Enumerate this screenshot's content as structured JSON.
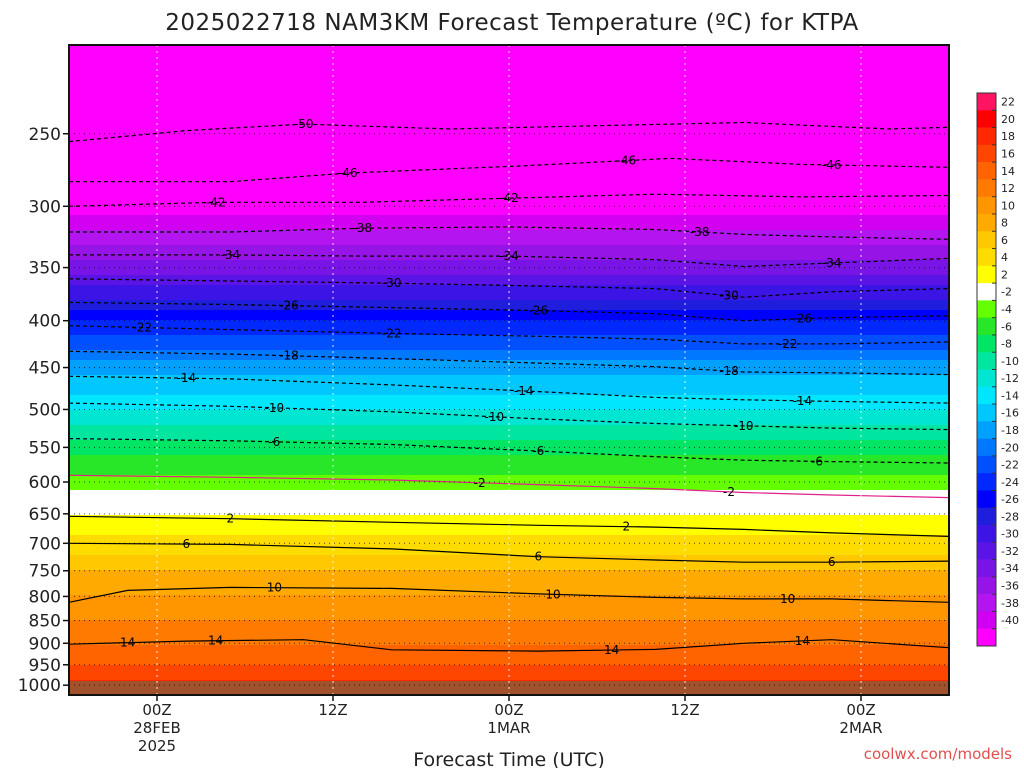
{
  "chart_data": {
    "type": "heatmap",
    "title": "2025022718 NAM3KM Forecast Temperature (ºC) for KTPA",
    "xlabel": "Forecast Time (UTC)",
    "ylabel": "",
    "credit": "coolwx.com/models",
    "y_ticks": [
      250,
      300,
      350,
      400,
      450,
      500,
      550,
      600,
      650,
      700,
      750,
      800,
      850,
      900,
      950,
      1000
    ],
    "ylim": [
      1025,
      200
    ],
    "x_ticks": [
      {
        "lines": [
          "00Z",
          "28FEB",
          "2025"
        ]
      },
      {
        "lines": [
          "12Z"
        ]
      },
      {
        "lines": [
          "00Z",
          "1MAR"
        ]
      },
      {
        "lines": [
          "12Z"
        ]
      },
      {
        "lines": [
          "00Z",
          "2MAR"
        ]
      }
    ],
    "xlim_hours": [
      -6,
      54
    ],
    "x_tick_hours": [
      0,
      12,
      24,
      36,
      48
    ],
    "y_scale": "log",
    "grid": true,
    "colorbar_labels": [
      22,
      20,
      18,
      16,
      14,
      12,
      10,
      8,
      6,
      4,
      2,
      -2,
      -4,
      -6,
      -8,
      -10,
      -12,
      -14,
      -16,
      -18,
      -20,
      -22,
      -24,
      -26,
      -28,
      -30,
      -32,
      -34,
      -36,
      -38,
      -40
    ],
    "colorbar_colors": [
      "#ff1463",
      "#ff0000",
      "#ff2800",
      "#ff4600",
      "#ff6400",
      "#ff7a00",
      "#ff9600",
      "#ffaa00",
      "#ffc800",
      "#ffdc00",
      "#ffff00",
      "#ffffff",
      "#64ff00",
      "#28e628",
      "#00e664",
      "#00e6a0",
      "#00e6d2",
      "#00e6ff",
      "#00c8ff",
      "#00a0ff",
      "#0078ff",
      "#0050ff",
      "#0028ff",
      "#0000ff",
      "#1e1edc",
      "#3c14e6",
      "#5a14e6",
      "#7814e6",
      "#9614e6",
      "#b414f0",
      "#d200f0",
      "#ff00ff"
    ],
    "temperature_profile": [
      {
        "p": 200,
        "t": -54
      },
      {
        "p": 250,
        "t": -48
      },
      {
        "p": 300,
        "t": -41
      },
      {
        "p": 350,
        "t": -33
      },
      {
        "p": 400,
        "t": -24
      },
      {
        "p": 450,
        "t": -17
      },
      {
        "p": 500,
        "t": -12
      },
      {
        "p": 550,
        "t": -7
      },
      {
        "p": 600,
        "t": -3
      },
      {
        "p": 650,
        "t": 2
      },
      {
        "p": 700,
        "t": 5
      },
      {
        "p": 750,
        "t": 8
      },
      {
        "p": 800,
        "t": 10
      },
      {
        "p": 850,
        "t": 12
      },
      {
        "p": 900,
        "t": 14
      },
      {
        "p": 950,
        "t": 16
      },
      {
        "p": 1000,
        "t": 19
      }
    ],
    "contours": [
      {
        "value": -50,
        "points": [
          [
            -6,
            255
          ],
          [
            2,
            248
          ],
          [
            10,
            244
          ],
          [
            20,
            247
          ],
          [
            30,
            245
          ],
          [
            40,
            243
          ],
          [
            50,
            247
          ],
          [
            54,
            246
          ]
        ],
        "labels": [
          {
            "text": "-50",
            "hour": 10
          }
        ]
      },
      {
        "value": -46,
        "points": [
          [
            -6,
            282
          ],
          [
            5,
            282
          ],
          [
            13,
            276
          ],
          [
            25,
            271
          ],
          [
            35,
            266
          ],
          [
            44,
            270
          ],
          [
            54,
            272
          ]
        ],
        "labels": [
          {
            "text": "-46",
            "hour": 13
          },
          {
            "text": "-46",
            "hour": 32
          },
          {
            "text": "-46",
            "hour": 46
          }
        ]
      },
      {
        "value": -42,
        "points": [
          [
            -6,
            300
          ],
          [
            4,
            297
          ],
          [
            14,
            297
          ],
          [
            24,
            294
          ],
          [
            34,
            291
          ],
          [
            44,
            293
          ],
          [
            54,
            292
          ]
        ],
        "labels": [
          {
            "text": "-42",
            "hour": 4
          },
          {
            "text": "-42",
            "hour": 24
          }
        ]
      },
      {
        "value": -38,
        "points": [
          [
            -6,
            320
          ],
          [
            5,
            320
          ],
          [
            14,
            317
          ],
          [
            24,
            316
          ],
          [
            34,
            318
          ],
          [
            40,
            322
          ],
          [
            46,
            324
          ],
          [
            54,
            326
          ]
        ],
        "labels": [
          {
            "text": "-38",
            "hour": 14
          },
          {
            "text": "-38",
            "hour": 37
          }
        ]
      },
      {
        "value": -34,
        "points": [
          [
            -6,
            339
          ],
          [
            5,
            339
          ],
          [
            14,
            340
          ],
          [
            24,
            340
          ],
          [
            34,
            343
          ],
          [
            40,
            349
          ],
          [
            46,
            346
          ],
          [
            54,
            342
          ]
        ],
        "labels": [
          {
            "text": "-34",
            "hour": 5
          },
          {
            "text": "-34",
            "hour": 24
          },
          {
            "text": "-34",
            "hour": 46
          }
        ]
      },
      {
        "value": -30,
        "points": [
          [
            -6,
            360
          ],
          [
            5,
            362
          ],
          [
            16,
            364
          ],
          [
            24,
            366
          ],
          [
            34,
            369
          ],
          [
            40,
            377
          ],
          [
            46,
            372
          ],
          [
            54,
            369
          ]
        ],
        "labels": [
          {
            "text": "-30",
            "hour": 16
          },
          {
            "text": "-30",
            "hour": 39
          }
        ]
      },
      {
        "value": -26,
        "points": [
          [
            -6,
            382
          ],
          [
            5,
            384
          ],
          [
            16,
            387
          ],
          [
            26,
            390
          ],
          [
            34,
            393
          ],
          [
            40,
            400
          ],
          [
            46,
            397
          ],
          [
            54,
            395
          ]
        ],
        "labels": [
          {
            "text": "-26",
            "hour": 9
          },
          {
            "text": "-26",
            "hour": 26
          },
          {
            "text": "-26",
            "hour": 44
          }
        ]
      },
      {
        "value": -22,
        "points": [
          [
            -6,
            405
          ],
          [
            5,
            409
          ],
          [
            16,
            413
          ],
          [
            26,
            416
          ],
          [
            34,
            419
          ],
          [
            40,
            424
          ],
          [
            46,
            424
          ],
          [
            54,
            422
          ]
        ],
        "labels": [
          {
            "text": "-22",
            "hour": -1
          },
          {
            "text": "-22",
            "hour": 16
          },
          {
            "text": "-22",
            "hour": 43
          }
        ]
      },
      {
        "value": -18,
        "points": [
          [
            -6,
            432
          ],
          [
            5,
            435
          ],
          [
            16,
            440
          ],
          [
            26,
            445
          ],
          [
            34,
            449
          ],
          [
            40,
            455
          ],
          [
            46,
            456
          ],
          [
            54,
            458
          ]
        ],
        "labels": [
          {
            "text": "-18",
            "hour": 9
          },
          {
            "text": "-18",
            "hour": 39
          }
        ]
      },
      {
        "value": -14,
        "points": [
          [
            -6,
            460
          ],
          [
            5,
            463
          ],
          [
            16,
            470
          ],
          [
            26,
            478
          ],
          [
            34,
            485
          ],
          [
            40,
            488
          ],
          [
            46,
            490
          ],
          [
            54,
            492
          ]
        ],
        "labels": [
          {
            "text": "-14",
            "hour": 2
          },
          {
            "text": "-14",
            "hour": 25
          },
          {
            "text": "-14",
            "hour": 44
          }
        ]
      },
      {
        "value": -10,
        "points": [
          [
            -6,
            492
          ],
          [
            5,
            496
          ],
          [
            16,
            503
          ],
          [
            26,
            512
          ],
          [
            34,
            518
          ],
          [
            40,
            521
          ],
          [
            46,
            524
          ],
          [
            54,
            526
          ]
        ],
        "labels": [
          {
            "text": "-10",
            "hour": 8
          },
          {
            "text": "-10",
            "hour": 23
          },
          {
            "text": "-10",
            "hour": 40
          }
        ]
      },
      {
        "value": -6,
        "points": [
          [
            -6,
            538
          ],
          [
            5,
            541
          ],
          [
            16,
            546
          ],
          [
            26,
            555
          ],
          [
            34,
            563
          ],
          [
            40,
            568
          ],
          [
            46,
            570
          ],
          [
            54,
            572
          ]
        ],
        "labels": [
          {
            "text": "-6",
            "hour": 8
          },
          {
            "text": "-6",
            "hour": 26
          },
          {
            "text": "-6",
            "hour": 45
          }
        ]
      },
      {
        "value": -2,
        "points": [
          [
            -6,
            590
          ],
          [
            5,
            593
          ],
          [
            16,
            597
          ],
          [
            26,
            604
          ],
          [
            34,
            610
          ],
          [
            40,
            616
          ],
          [
            46,
            620
          ],
          [
            54,
            624
          ]
        ],
        "labels": [
          {
            "text": "-2",
            "hour": 22
          },
          {
            "text": "-2",
            "hour": 39
          }
        ]
      },
      {
        "value": 2,
        "points": [
          [
            -6,
            654
          ],
          [
            5,
            658
          ],
          [
            16,
            664
          ],
          [
            26,
            669
          ],
          [
            34,
            672
          ],
          [
            40,
            676
          ],
          [
            46,
            682
          ],
          [
            54,
            688
          ]
        ],
        "labels": [
          {
            "text": "2",
            "hour": 5
          },
          {
            "text": "2",
            "hour": 32
          }
        ]
      },
      {
        "value": 6,
        "points": [
          [
            -6,
            700
          ],
          [
            5,
            702
          ],
          [
            16,
            710
          ],
          [
            26,
            724
          ],
          [
            34,
            730
          ],
          [
            40,
            734
          ],
          [
            46,
            734
          ],
          [
            54,
            732
          ]
        ],
        "labels": [
          {
            "text": "6",
            "hour": 2
          },
          {
            "text": "6",
            "hour": 26
          },
          {
            "text": "6",
            "hour": 46
          }
        ]
      },
      {
        "value": 10,
        "points": [
          [
            -6,
            812
          ],
          [
            -2,
            788
          ],
          [
            5,
            782
          ],
          [
            16,
            784
          ],
          [
            26,
            795
          ],
          [
            34,
            802
          ],
          [
            40,
            805
          ],
          [
            46,
            805
          ],
          [
            54,
            812
          ]
        ],
        "labels": [
          {
            "text": "10",
            "hour": 8
          },
          {
            "text": "10",
            "hour": 27
          },
          {
            "text": "10",
            "hour": 43
          }
        ]
      },
      {
        "value": 14,
        "points": [
          [
            -6,
            902
          ],
          [
            2,
            895
          ],
          [
            10,
            892
          ],
          [
            16,
            915
          ],
          [
            26,
            918
          ],
          [
            34,
            914
          ],
          [
            40,
            900
          ],
          [
            46,
            892
          ],
          [
            54,
            910
          ]
        ],
        "labels": [
          {
            "text": "14",
            "hour": -2
          },
          {
            "text": "14",
            "hour": 4
          },
          {
            "text": "14",
            "hour": 31
          },
          {
            "text": "14",
            "hour": 44
          }
        ]
      }
    ]
  }
}
